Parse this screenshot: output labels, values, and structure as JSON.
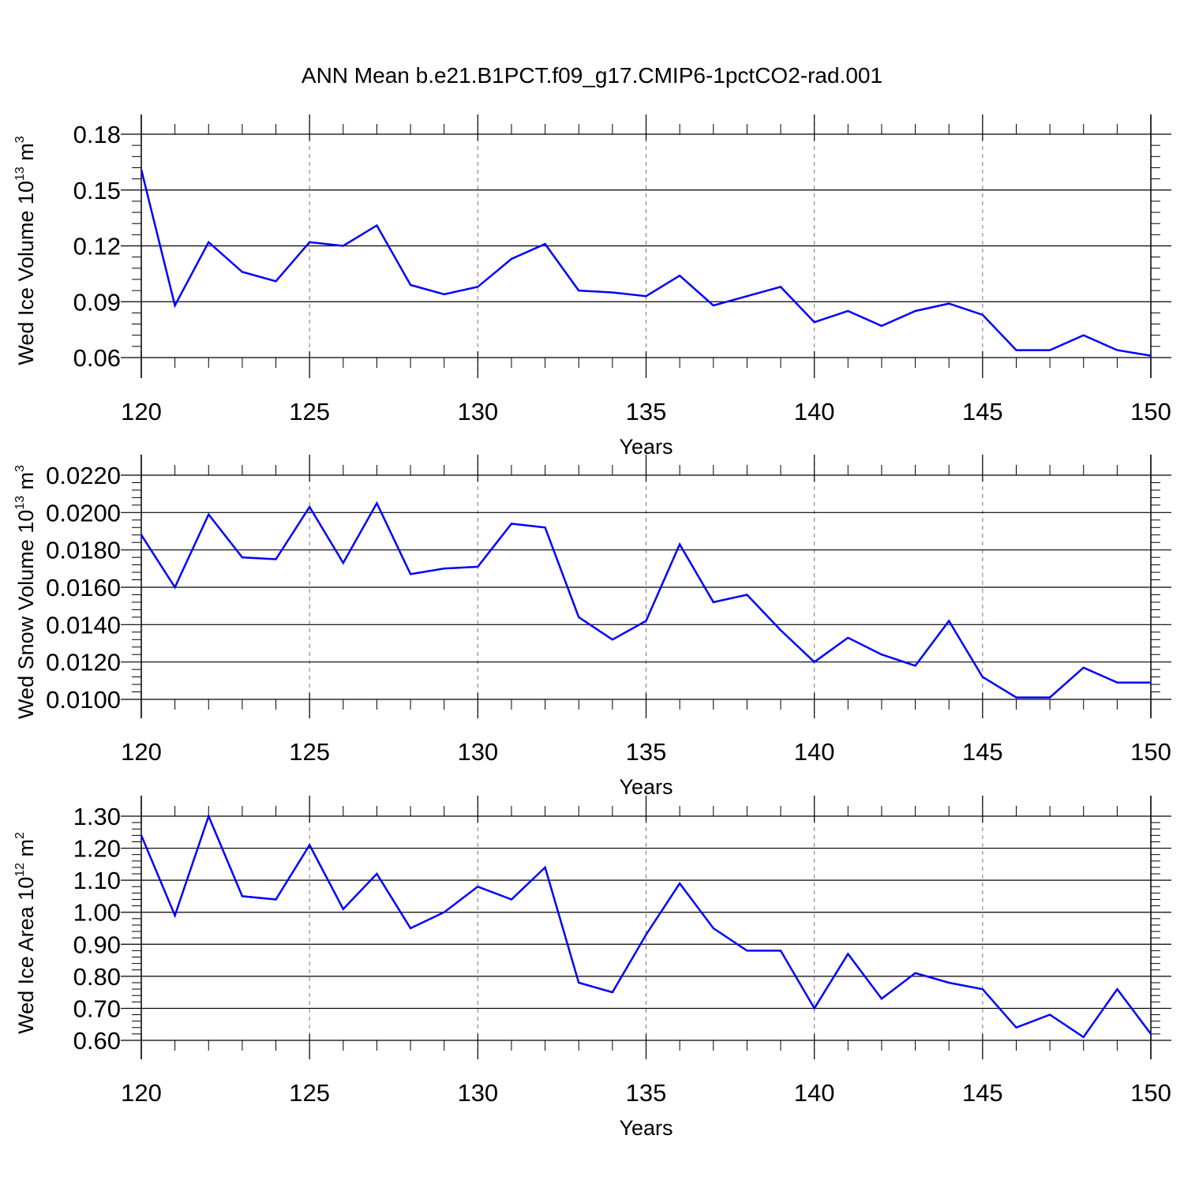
{
  "title": "ANN Mean b.e21.B1PCT.f09_g17.CMIP6-1pctCO2-rad.001",
  "chart_data": [
    {
      "type": "line",
      "xlabel": "Years",
      "ylabel": "Wed Ice Volume 10",
      "ylabel_exp": "13",
      "ylabel_unit": " m",
      "ylabel_unit_exp": "3",
      "xlim": [
        120,
        150
      ],
      "ylim": [
        0.06,
        0.18
      ],
      "xticks": [
        120,
        125,
        130,
        135,
        140,
        145,
        150
      ],
      "yticks": [
        0.06,
        0.09,
        0.12,
        0.15,
        0.18
      ],
      "ytick_labels": [
        "0.06",
        "0.09",
        "0.12",
        "0.15",
        "0.18"
      ],
      "line_color": "#0000ff",
      "x": [
        120,
        121,
        122,
        123,
        124,
        125,
        126,
        127,
        128,
        129,
        130,
        131,
        132,
        133,
        134,
        135,
        136,
        137,
        138,
        139,
        140,
        141,
        142,
        143,
        144,
        145,
        146,
        147,
        148,
        149,
        150
      ],
      "values": [
        0.161,
        0.088,
        0.122,
        0.106,
        0.101,
        0.122,
        0.12,
        0.131,
        0.099,
        0.094,
        0.098,
        0.113,
        0.121,
        0.096,
        0.095,
        0.093,
        0.104,
        0.088,
        0.093,
        0.098,
        0.079,
        0.085,
        0.077,
        0.085,
        0.089,
        0.083,
        0.064,
        0.064,
        0.072,
        0.064,
        0.061
      ]
    },
    {
      "type": "line",
      "xlabel": "Years",
      "ylabel": "Wed Snow Volume 10",
      "ylabel_exp": "13",
      "ylabel_unit": " m",
      "ylabel_unit_exp": "3",
      "xlim": [
        120,
        150
      ],
      "ylim": [
        0.01,
        0.022
      ],
      "xticks": [
        120,
        125,
        130,
        135,
        140,
        145,
        150
      ],
      "yticks": [
        0.01,
        0.012,
        0.014,
        0.016,
        0.018,
        0.02,
        0.022
      ],
      "ytick_labels": [
        "0.0100",
        "0.0120",
        "0.0140",
        "0.0160",
        "0.0180",
        "0.0200",
        "0.0220"
      ],
      "line_color": "#0000ff",
      "x": [
        120,
        121,
        122,
        123,
        124,
        125,
        126,
        127,
        128,
        129,
        130,
        131,
        132,
        133,
        134,
        135,
        136,
        137,
        138,
        139,
        140,
        141,
        142,
        143,
        144,
        145,
        146,
        147,
        148,
        149,
        150
      ],
      "values": [
        0.0188,
        0.016,
        0.0199,
        0.0176,
        0.0175,
        0.0203,
        0.0173,
        0.0205,
        0.0167,
        0.017,
        0.0171,
        0.0194,
        0.0192,
        0.0144,
        0.0132,
        0.0142,
        0.0183,
        0.0152,
        0.0156,
        0.0137,
        0.012,
        0.0133,
        0.0124,
        0.0118,
        0.0142,
        0.0112,
        0.0101,
        0.0101,
        0.0117,
        0.0109,
        0.0109
      ]
    },
    {
      "type": "line",
      "xlabel": "Years",
      "ylabel": "Wed Ice Area 10",
      "ylabel_exp": "12",
      "ylabel_unit": " m",
      "ylabel_unit_exp": "2",
      "xlim": [
        120,
        150
      ],
      "ylim": [
        0.6,
        1.3
      ],
      "xticks": [
        120,
        125,
        130,
        135,
        140,
        145,
        150
      ],
      "yticks": [
        0.6,
        0.7,
        0.8,
        0.9,
        1.0,
        1.1,
        1.2,
        1.3
      ],
      "ytick_labels": [
        "0.60",
        "0.70",
        "0.80",
        "0.90",
        "1.00",
        "1.10",
        "1.20",
        "1.30"
      ],
      "line_color": "#0000ff",
      "x": [
        120,
        121,
        122,
        123,
        124,
        125,
        126,
        127,
        128,
        129,
        130,
        131,
        132,
        133,
        134,
        135,
        136,
        137,
        138,
        139,
        140,
        141,
        142,
        143,
        144,
        145,
        146,
        147,
        148,
        149,
        150
      ],
      "values": [
        1.24,
        0.99,
        1.3,
        1.05,
        1.04,
        1.21,
        1.01,
        1.12,
        0.95,
        1.0,
        1.08,
        1.04,
        1.14,
        0.78,
        0.75,
        0.93,
        1.09,
        0.95,
        0.88,
        0.88,
        0.7,
        0.87,
        0.73,
        0.81,
        0.78,
        0.76,
        0.64,
        0.68,
        0.61,
        0.76,
        0.62
      ]
    }
  ]
}
